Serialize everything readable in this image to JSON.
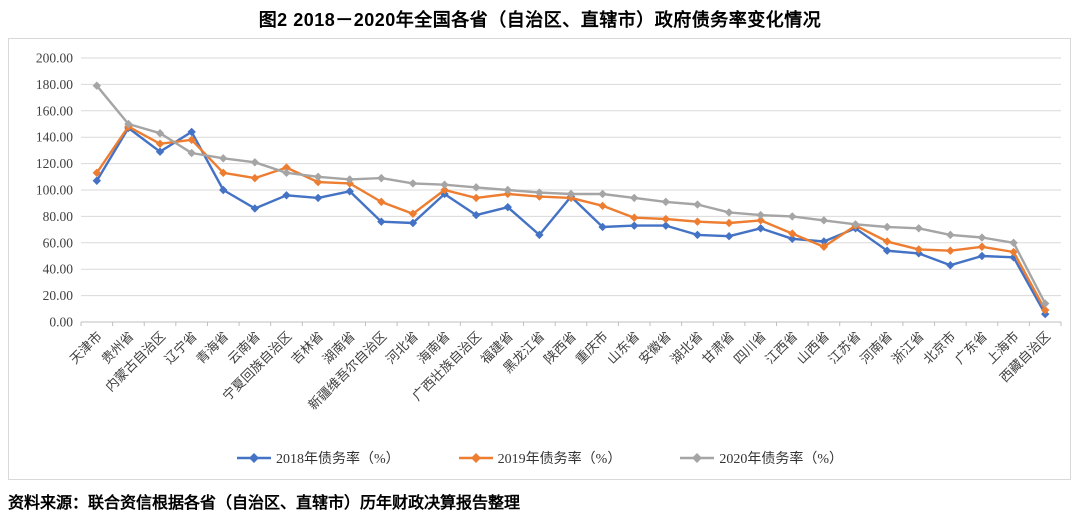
{
  "page": {
    "title": "图2  2018－2020年全国各省（自治区、直辖市）政府债务率变化情况",
    "source": "资料来源：联合资信根据各省（自治区、直辖市）历年财政决算报告整理"
  },
  "chart_data": {
    "type": "line",
    "title": "图2  2018－2020年全国各省（自治区、直辖市）政府债务率变化情况",
    "categories": [
      "天津市",
      "贵州省",
      "内蒙古自治区",
      "辽宁省",
      "青海省",
      "云南省",
      "宁夏回族自治区",
      "吉林省",
      "湖南省",
      "新疆维吾尔自治区",
      "河北省",
      "海南省",
      "广西壮族自治区",
      "福建省",
      "黑龙江省",
      "陕西省",
      "重庆市",
      "山东省",
      "安徽省",
      "湖北省",
      "甘肃省",
      "四川省",
      "江西省",
      "山西省",
      "江苏省",
      "河南省",
      "浙江省",
      "北京市",
      "广东省",
      "上海市",
      "西藏自治区"
    ],
    "series": [
      {
        "name": "2018年债务率（%）",
        "color": "#4472C4",
        "values": [
          107,
          147,
          129,
          144,
          100,
          86,
          96,
          94,
          99,
          76,
          75,
          97,
          81,
          87,
          66,
          95,
          72,
          73,
          73,
          66,
          65,
          71,
          63,
          61,
          71,
          54,
          52,
          43,
          50,
          49,
          6
        ]
      },
      {
        "name": "2019年债务率（%）",
        "color": "#ED7D31",
        "values": [
          113,
          148,
          135,
          138,
          113,
          109,
          117,
          106,
          105,
          91,
          82,
          100,
          94,
          97,
          95,
          94,
          88,
          79,
          78,
          76,
          75,
          77,
          67,
          57,
          73,
          61,
          55,
          54,
          57,
          53,
          9
        ]
      },
      {
        "name": "2020年债务率（%）",
        "color": "#A5A5A5",
        "values": [
          179,
          150,
          143,
          128,
          124,
          121,
          113,
          110,
          108,
          109,
          105,
          104,
          102,
          100,
          98,
          97,
          97,
          94,
          91,
          89,
          83,
          81,
          80,
          77,
          74,
          72,
          71,
          66,
          64,
          60,
          14
        ]
      }
    ],
    "ylim": [
      0,
      200
    ],
    "y_tick_step": 20,
    "y_tick_labels": [
      "0.00",
      "20.00",
      "40.00",
      "60.00",
      "80.00",
      "100.00",
      "120.00",
      "140.00",
      "160.00",
      "180.00",
      "200.00"
    ],
    "grid": true,
    "legend_position": "bottom",
    "style": {
      "gridline_color": "#d9d9d9",
      "axis_line_color": "#bfbfbf",
      "tick_text_color": "#3f3f3f",
      "marker": "diamond"
    }
  }
}
